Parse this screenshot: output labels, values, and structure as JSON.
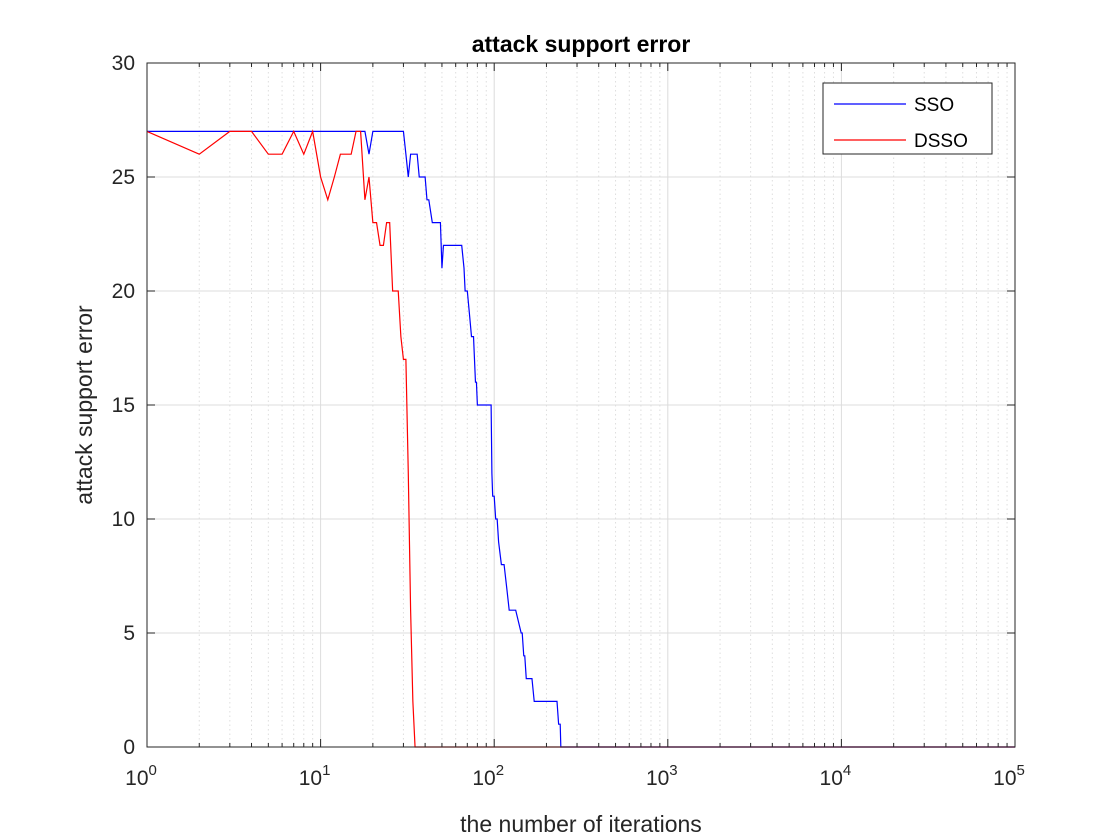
{
  "chart_data": {
    "type": "line",
    "title": "attack support error",
    "xlabel": "the number of iterations",
    "ylabel": "attack support error",
    "xscale": "log",
    "xlim": [
      1,
      100000
    ],
    "ylim": [
      0,
      30
    ],
    "xticks": [
      1,
      10,
      100,
      1000,
      10000,
      100000
    ],
    "xtick_labels": [
      {
        "base": "10",
        "exp": "0"
      },
      {
        "base": "10",
        "exp": "1"
      },
      {
        "base": "10",
        "exp": "2"
      },
      {
        "base": "10",
        "exp": "3"
      },
      {
        "base": "10",
        "exp": "4"
      },
      {
        "base": "10",
        "exp": "5"
      }
    ],
    "yticks": [
      0,
      5,
      10,
      15,
      20,
      25,
      30
    ],
    "grid": true,
    "legend_position": "top-right",
    "series": [
      {
        "name": "SSO",
        "color": "#0000ff",
        "x": [
          1,
          18,
          19,
          20,
          21,
          30,
          31,
          32,
          33,
          34,
          36,
          37,
          38,
          40,
          41,
          42,
          44,
          45,
          48,
          49,
          50,
          51,
          52,
          56,
          57,
          60,
          65,
          67,
          68,
          70,
          72,
          74,
          76,
          77,
          78,
          79,
          80,
          84,
          85,
          96,
          97,
          98,
          100,
          102,
          104,
          106,
          110,
          114,
          118,
          122,
          128,
          133,
          143,
          145,
          148,
          150,
          153,
          157,
          165,
          170,
          175,
          230,
          235,
          240,
          242,
          100000
        ],
        "y": [
          27,
          27,
          26,
          27,
          27,
          27,
          26,
          25,
          26,
          26,
          26,
          25,
          25,
          25,
          24,
          24,
          23,
          23,
          23,
          23,
          21,
          22,
          22,
          22,
          22,
          22,
          22,
          21,
          20,
          20,
          19,
          18,
          18,
          17,
          16,
          16,
          15,
          15,
          15,
          15,
          12,
          11,
          11,
          10,
          10,
          9,
          8,
          8,
          7,
          6,
          6,
          6,
          5,
          5,
          4,
          4,
          3,
          3,
          3,
          2,
          2,
          2,
          1,
          1,
          0,
          0
        ]
      },
      {
        "name": "DSSO",
        "color": "#ff0000",
        "x": [
          1,
          2,
          3,
          4,
          5,
          6,
          7,
          8,
          9,
          10,
          11,
          12,
          13,
          14,
          15,
          16,
          17,
          18,
          19,
          20,
          21,
          22,
          23,
          24,
          25,
          26,
          27,
          28,
          29,
          30,
          31,
          32,
          33,
          34,
          35,
          36,
          37,
          100000
        ],
        "y": [
          27,
          26,
          27,
          27,
          26,
          26,
          27,
          26,
          27,
          25,
          24,
          25,
          26,
          26,
          26,
          27,
          27,
          24,
          25,
          23,
          23,
          22,
          22,
          23,
          23,
          20,
          20,
          20,
          18,
          17,
          17,
          12,
          6,
          2,
          0,
          0,
          0,
          0
        ]
      }
    ]
  }
}
